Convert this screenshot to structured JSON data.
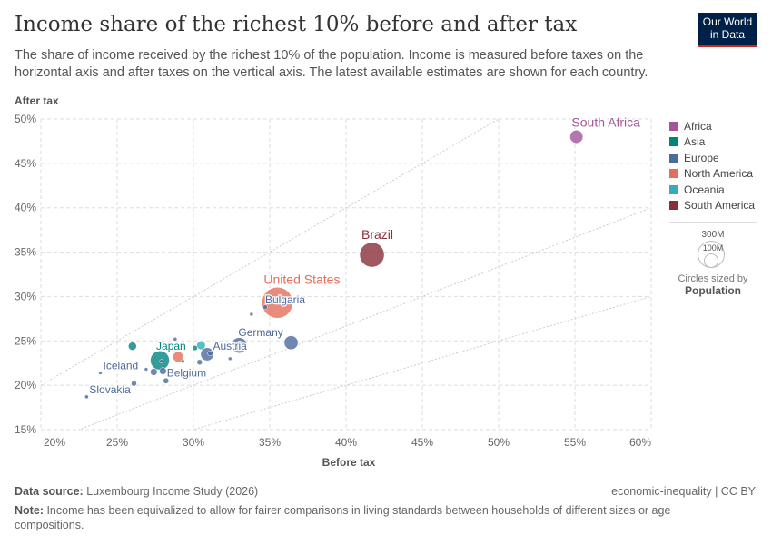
{
  "title": "Income share of the richest 10% before and after tax",
  "subtitle": "The share of income received by the richest 10% of the population. Income is measured before taxes on the horizontal axis and after taxes on the vertical axis. The latest available estimates are shown for each country.",
  "logo": {
    "line1": "Our World",
    "line2": "in Data"
  },
  "legend": [
    {
      "name": "Africa",
      "color": "#a2559c"
    },
    {
      "name": "Asia",
      "color": "#00847e"
    },
    {
      "name": "Europe",
      "color": "#4c6a9c"
    },
    {
      "name": "North America",
      "color": "#e56e5a"
    },
    {
      "name": "Oceania",
      "color": "#38aaba"
    },
    {
      "name": "South America",
      "color": "#883039"
    }
  ],
  "sizekey": {
    "big": "300M",
    "small": "100M",
    "caption": "Circles sized by",
    "variable": "Population"
  },
  "footer": {
    "source_label": "Data source:",
    "source": "Luxembourg Income Study (2026)",
    "right": "economic-inequality | CC BY",
    "note_label": "Note:",
    "note": "Income has been equivalized to allow for fairer comparisons in living standards between households of different sizes or age compositions."
  },
  "chart_data": {
    "type": "scatter",
    "xlabel": "Before tax",
    "ylabel": "After tax",
    "xlim": [
      20,
      60
    ],
    "ylim": [
      15,
      50
    ],
    "xticks": [
      "20%",
      "25%",
      "30%",
      "35%",
      "40%",
      "45%",
      "50%",
      "55%",
      "60%"
    ],
    "yticks": [
      "15%",
      "20%",
      "25%",
      "30%",
      "35%",
      "40%",
      "45%",
      "50%"
    ],
    "grid": true,
    "legend_placement": "right",
    "points": [
      {
        "label": "South Africa",
        "region": "Africa",
        "x": 55.1,
        "y": 48.0,
        "pop": 60
      },
      {
        "label": "Brazil",
        "region": "South America",
        "x": 41.7,
        "y": 34.7,
        "pop": 210
      },
      {
        "label": "United States",
        "region": "North America",
        "x": 35.5,
        "y": 29.3,
        "pop": 330
      },
      {
        "label": "Bulgaria",
        "region": "Europe",
        "x": 34.7,
        "y": 28.8,
        "pop": 7
      },
      {
        "label": "",
        "region": "Europe",
        "x": 33.8,
        "y": 28.0,
        "pop": 3
      },
      {
        "label": "Germany",
        "region": "Europe",
        "x": 33.0,
        "y": 24.5,
        "pop": 83
      },
      {
        "label": "",
        "region": "Europe",
        "x": 36.4,
        "y": 24.8,
        "pop": 67
      },
      {
        "label": "Austria",
        "region": "Europe",
        "x": 31.1,
        "y": 23.6,
        "pop": 9
      },
      {
        "label": "",
        "region": "Europe",
        "x": 30.9,
        "y": 23.5,
        "pop": 60
      },
      {
        "label": "Japan",
        "region": "Asia",
        "x": 27.8,
        "y": 22.8,
        "pop": 125
      },
      {
        "label": "",
        "region": "Asia",
        "x": 26.0,
        "y": 24.4,
        "pop": 23
      },
      {
        "label": "",
        "region": "Oceania",
        "x": 30.5,
        "y": 24.5,
        "pop": 26
      },
      {
        "label": "",
        "region": "North America",
        "x": 29.0,
        "y": 23.2,
        "pop": 38
      },
      {
        "label": "",
        "region": "Asia",
        "x": 30.1,
        "y": 24.2,
        "pop": 9
      },
      {
        "label": "",
        "region": "Europe",
        "x": 28.8,
        "y": 25.2,
        "pop": 5
      },
      {
        "label": "",
        "region": "Europe",
        "x": 27.9,
        "y": 22.7,
        "pop": 5
      },
      {
        "label": "",
        "region": "Europe",
        "x": 29.3,
        "y": 22.7,
        "pop": 3
      },
      {
        "label": "",
        "region": "Europe",
        "x": 30.4,
        "y": 22.6,
        "pop": 10
      },
      {
        "label": "",
        "region": "Europe",
        "x": 32.4,
        "y": 23.0,
        "pop": 3
      },
      {
        "label": "Iceland",
        "region": "Europe",
        "x": 23.9,
        "y": 21.4,
        "pop": 0.4
      },
      {
        "label": "",
        "region": "Europe",
        "x": 26.9,
        "y": 21.8,
        "pop": 2
      },
      {
        "label": "",
        "region": "Europe",
        "x": 27.4,
        "y": 21.5,
        "pop": 17
      },
      {
        "label": "",
        "region": "Europe",
        "x": 28.0,
        "y": 21.6,
        "pop": 17
      },
      {
        "label": "Belgium",
        "region": "Europe",
        "x": 28.2,
        "y": 20.5,
        "pop": 11
      },
      {
        "label": "",
        "region": "Europe",
        "x": 26.1,
        "y": 20.2,
        "pop": 10
      },
      {
        "label": "Slovakia",
        "region": "Europe",
        "x": 23.0,
        "y": 18.7,
        "pop": 5
      }
    ],
    "reference_lines": [
      {
        "slope": 1
      },
      {
        "slope": 0.6667
      },
      {
        "slope": 0.5
      }
    ]
  }
}
